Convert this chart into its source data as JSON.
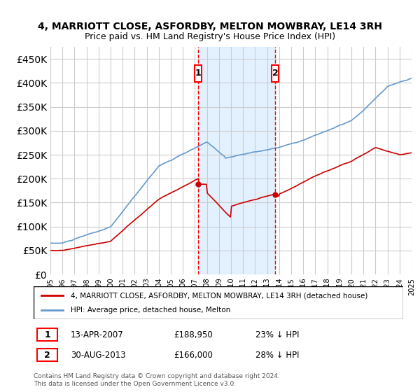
{
  "title1": "4, MARRIOTT CLOSE, ASFORDBY, MELTON MOWBRAY, LE14 3RH",
  "title2": "Price paid vs. HM Land Registry's House Price Index (HPI)",
  "legend_label1": "4, MARRIOTT CLOSE, ASFORDBY, MELTON MOWBRAY, LE14 3RH (detached house)",
  "legend_label2": "HPI: Average price, detached house, Melton",
  "transaction1_date": "13-APR-2007",
  "transaction1_price": 188950,
  "transaction1_hpi": "23% ↓ HPI",
  "transaction2_date": "30-AUG-2013",
  "transaction2_price": 166000,
  "transaction2_hpi": "28% ↓ HPI",
  "footer": "Contains HM Land Registry data © Crown copyright and database right 2024.\nThis data is licensed under the Open Government Licence v3.0.",
  "red_color": "#cc0000",
  "blue_color": "#6699cc",
  "shade_color": "#ddeeff",
  "ylim": [
    0,
    475000
  ],
  "yticks": [
    0,
    50000,
    100000,
    150000,
    200000,
    250000,
    300000,
    350000,
    400000,
    450000
  ]
}
